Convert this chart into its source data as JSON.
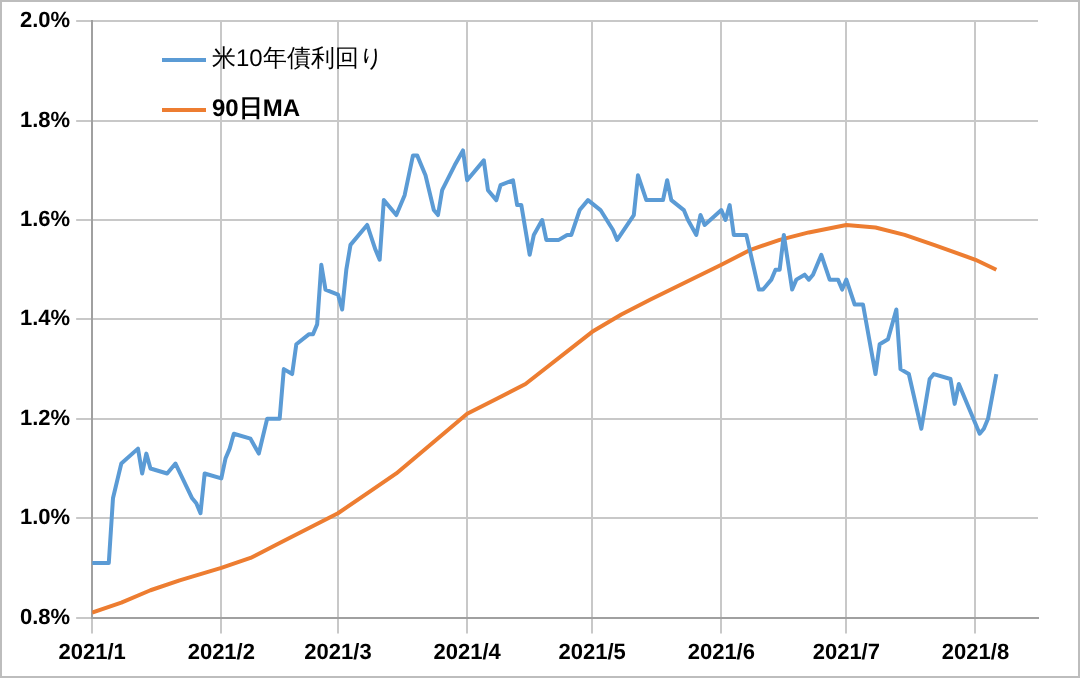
{
  "chart_data": {
    "type": "line",
    "xlim": [
      "2021-01-01",
      "2021-08-16"
    ],
    "xticks": [
      {
        "value": "2021-01-01",
        "label": "2021/1"
      },
      {
        "value": "2021-02-01",
        "label": "2021/2"
      },
      {
        "value": "2021-03-01",
        "label": "2021/3"
      },
      {
        "value": "2021-04-01",
        "label": "2021/4"
      },
      {
        "value": "2021-05-01",
        "label": "2021/5"
      },
      {
        "value": "2021-06-01",
        "label": "2021/6"
      },
      {
        "value": "2021-07-01",
        "label": "2021/7"
      },
      {
        "value": "2021-08-01",
        "label": "2021/8"
      }
    ],
    "ylim": [
      0.8,
      2.0
    ],
    "yticks": [
      {
        "value": 0.8,
        "label": "0.8%"
      },
      {
        "value": 1.0,
        "label": "1.0%"
      },
      {
        "value": 1.2,
        "label": "1.2%"
      },
      {
        "value": 1.4,
        "label": "1.4%"
      },
      {
        "value": 1.6,
        "label": "1.6%"
      },
      {
        "value": 1.8,
        "label": "1.8%"
      },
      {
        "value": 2.0,
        "label": "2.0%"
      }
    ],
    "grid": true,
    "legend": "top left",
    "marker": "none",
    "line_style": "solid",
    "series": [
      {
        "name": "米10年債利回り",
        "color": "#5b9bd5",
        "x": [
          "2021-01-01",
          "2021-01-05",
          "2021-01-06",
          "2021-01-08",
          "2021-01-12",
          "2021-01-13",
          "2021-01-14",
          "2021-01-15",
          "2021-01-19",
          "2021-01-21",
          "2021-01-25",
          "2021-01-26",
          "2021-01-27",
          "2021-01-28",
          "2021-02-01",
          "2021-02-02",
          "2021-02-03",
          "2021-02-04",
          "2021-02-08",
          "2021-02-10",
          "2021-02-12",
          "2021-02-15",
          "2021-02-16",
          "2021-02-18",
          "2021-02-19",
          "2021-02-22",
          "2021-02-23",
          "2021-02-24",
          "2021-02-25",
          "2021-02-26",
          "2021-03-01",
          "2021-03-02",
          "2021-03-03",
          "2021-03-04",
          "2021-03-08",
          "2021-03-10",
          "2021-03-11",
          "2021-03-12",
          "2021-03-15",
          "2021-03-17",
          "2021-03-19",
          "2021-03-20",
          "2021-03-22",
          "2021-03-24",
          "2021-03-25",
          "2021-03-26",
          "2021-03-29",
          "2021-03-31",
          "2021-04-01",
          "2021-04-05",
          "2021-04-06",
          "2021-04-08",
          "2021-04-09",
          "2021-04-12",
          "2021-04-13",
          "2021-04-14",
          "2021-04-16",
          "2021-04-17",
          "2021-04-19",
          "2021-04-20",
          "2021-04-23",
          "2021-04-25",
          "2021-04-26",
          "2021-04-28",
          "2021-04-30",
          "2021-05-03",
          "2021-05-06",
          "2021-05-07",
          "2021-05-11",
          "2021-05-12",
          "2021-05-14",
          "2021-05-18",
          "2021-05-19",
          "2021-05-20",
          "2021-05-23",
          "2021-05-24",
          "2021-05-26",
          "2021-05-27",
          "2021-05-28",
          "2021-06-01",
          "2021-06-02",
          "2021-06-03",
          "2021-06-04",
          "2021-06-07",
          "2021-06-10",
          "2021-06-11",
          "2021-06-13",
          "2021-06-14",
          "2021-06-15",
          "2021-06-16",
          "2021-06-18",
          "2021-06-19",
          "2021-06-21",
          "2021-06-22",
          "2021-06-23",
          "2021-06-25",
          "2021-06-27",
          "2021-06-29",
          "2021-06-30",
          "2021-07-01",
          "2021-07-03",
          "2021-07-05",
          "2021-07-08",
          "2021-07-09",
          "2021-07-11",
          "2021-07-13",
          "2021-07-14",
          "2021-07-16",
          "2021-07-19",
          "2021-07-21",
          "2021-07-22",
          "2021-07-26",
          "2021-07-27",
          "2021-07-28",
          "2021-08-02",
          "2021-08-03",
          "2021-08-04",
          "2021-08-06"
        ],
        "values": [
          0.91,
          0.91,
          1.04,
          1.11,
          1.14,
          1.09,
          1.13,
          1.1,
          1.09,
          1.11,
          1.04,
          1.03,
          1.01,
          1.09,
          1.08,
          1.12,
          1.14,
          1.17,
          1.16,
          1.13,
          1.2,
          1.2,
          1.3,
          1.29,
          1.35,
          1.37,
          1.37,
          1.39,
          1.51,
          1.46,
          1.45,
          1.42,
          1.5,
          1.55,
          1.59,
          1.54,
          1.52,
          1.64,
          1.61,
          1.65,
          1.73,
          1.73,
          1.69,
          1.62,
          1.61,
          1.66,
          1.71,
          1.74,
          1.68,
          1.72,
          1.66,
          1.64,
          1.67,
          1.68,
          1.63,
          1.63,
          1.53,
          1.57,
          1.6,
          1.56,
          1.56,
          1.57,
          1.57,
          1.62,
          1.64,
          1.62,
          1.58,
          1.56,
          1.61,
          1.69,
          1.64,
          1.64,
          1.68,
          1.64,
          1.62,
          1.6,
          1.57,
          1.61,
          1.59,
          1.62,
          1.6,
          1.63,
          1.57,
          1.57,
          1.46,
          1.46,
          1.48,
          1.5,
          1.5,
          1.57,
          1.46,
          1.48,
          1.49,
          1.48,
          1.49,
          1.53,
          1.48,
          1.48,
          1.46,
          1.48,
          1.43,
          1.43,
          1.29,
          1.35,
          1.36,
          1.42,
          1.3,
          1.29,
          1.18,
          1.28,
          1.29,
          1.28,
          1.23,
          1.27,
          1.17,
          1.18,
          1.2,
          1.29
        ]
      },
      {
        "name": "90日MA",
        "color": "#ed7d31",
        "x": [
          "2021-01-01",
          "2021-01-08",
          "2021-01-15",
          "2021-01-22",
          "2021-02-01",
          "2021-02-08",
          "2021-02-15",
          "2021-03-01",
          "2021-03-08",
          "2021-03-15",
          "2021-04-01",
          "2021-04-08",
          "2021-04-15",
          "2021-05-01",
          "2021-05-08",
          "2021-05-15",
          "2021-06-01",
          "2021-06-08",
          "2021-06-15",
          "2021-06-22",
          "2021-07-01",
          "2021-07-08",
          "2021-07-15",
          "2021-07-22",
          "2021-08-01",
          "2021-08-06"
        ],
        "values": [
          0.81,
          0.83,
          0.855,
          0.875,
          0.9,
          0.92,
          0.95,
          1.01,
          1.05,
          1.09,
          1.21,
          1.24,
          1.27,
          1.375,
          1.41,
          1.44,
          1.51,
          1.54,
          1.56,
          1.575,
          1.59,
          1.585,
          1.57,
          1.55,
          1.52,
          1.5
        ]
      }
    ]
  }
}
